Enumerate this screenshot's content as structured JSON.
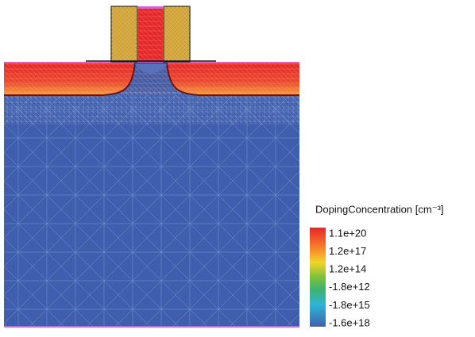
{
  "legend": {
    "title": "DopingConcentration [cm⁻³]",
    "labels": [
      "1.1e+20",
      "1.2e+17",
      "1.2e+14",
      "-1.8e+12",
      "-1.8e+15",
      "-1.6e+18"
    ]
  }
}
